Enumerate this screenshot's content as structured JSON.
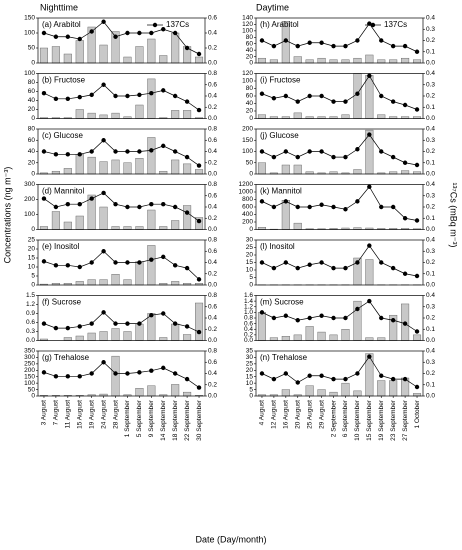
{
  "headers": [
    "Nighttime",
    "Daytime"
  ],
  "y_label": "Concentrations (ng m⁻³)",
  "y2_label": "¹³⁷Cs (mBq m⁻³)",
  "x_label": "Date (Day/month)",
  "chart_data": [
    {
      "type": "bar",
      "title": "(a) Arabitol",
      "legend": "upper right",
      "series": [
        {
          "color": "#c8c8c8",
          "values": [
            50,
            55,
            30,
            75,
            120,
            60,
            105,
            20,
            55,
            80,
            25,
            100,
            55,
            20
          ]
        },
        {
          "name": "137Cs",
          "color": "#000000",
          "axis": "y2",
          "values": [
            0.4,
            0.35,
            0.35,
            0.32,
            0.42,
            0.55,
            0.35,
            0.4,
            0.4,
            0.4,
            0.45,
            0.4,
            0.2,
            0.12
          ]
        }
      ],
      "ylim": [
        0,
        150
      ],
      "yticks": [
        0,
        50,
        100,
        150
      ],
      "y2lim": [
        0,
        0.6
      ],
      "y2ticks": [
        {
          "value": 0,
          "label": "0.0"
        },
        0.2,
        0.4,
        0.6
      ]
    },
    {
      "type": "bar",
      "title": "(b) Fructose",
      "series": [
        {
          "color": "#c8c8c8",
          "values": [
            2,
            2,
            2,
            20,
            12,
            8,
            12,
            4,
            30,
            88,
            2,
            18,
            18,
            2
          ]
        },
        {
          "color": "#000000",
          "axis": "y2",
          "values": [
            0.45,
            0.35,
            0.35,
            0.38,
            0.42,
            0.6,
            0.4,
            0.4,
            0.42,
            0.45,
            0.5,
            0.4,
            0.3,
            0.15
          ]
        }
      ],
      "ylim": [
        0,
        100
      ],
      "yticks": [
        0,
        20,
        40,
        60,
        80,
        100
      ],
      "y2lim": [
        0,
        0.8
      ],
      "y2ticks": [
        {
          "value": 0,
          "label": "0.0"
        },
        0.2,
        0.4,
        0.6,
        0.8
      ]
    },
    {
      "type": "bar",
      "title": "(c) Glucose",
      "series": [
        {
          "color": "#c8c8c8",
          "values": [
            2,
            5,
            10,
            35,
            30,
            22,
            25,
            20,
            28,
            65,
            5,
            25,
            18,
            8
          ]
        },
        {
          "color": "#000000",
          "axis": "y2",
          "values": [
            0.4,
            0.35,
            0.35,
            0.35,
            0.4,
            0.6,
            0.4,
            0.4,
            0.4,
            0.42,
            0.5,
            0.4,
            0.3,
            0.15
          ]
        }
      ],
      "ylim": [
        0,
        80
      ],
      "yticks": [
        0,
        20,
        40,
        60,
        80
      ],
      "y2lim": [
        0,
        0.8
      ],
      "y2ticks": [
        {
          "value": 0,
          "label": "0.0"
        },
        0.2,
        0.4,
        0.6,
        0.8
      ]
    },
    {
      "type": "bar",
      "title": "(d) Mannitol",
      "series": [
        {
          "color": "#c8c8c8",
          "values": [
            20,
            120,
            50,
            90,
            230,
            150,
            20,
            20,
            20,
            130,
            20,
            60,
            160,
            80
          ]
        },
        {
          "color": "#000000",
          "axis": "y2",
          "values": [
            0.55,
            0.4,
            0.45,
            0.45,
            0.55,
            0.65,
            0.45,
            0.4,
            0.4,
            0.45,
            0.45,
            0.4,
            0.3,
            0.15
          ]
        }
      ],
      "ylim": [
        0,
        300
      ],
      "yticks": [
        0,
        100,
        200,
        300
      ],
      "y2lim": [
        0,
        0.8
      ],
      "y2ticks": [
        {
          "value": 0,
          "label": "0.0"
        },
        0.2,
        0.4,
        0.6,
        0.8
      ]
    },
    {
      "type": "bar",
      "title": "(e) Inositol",
      "series": [
        {
          "color": "#c8c8c8",
          "values": [
            0.5,
            1,
            1,
            2,
            3,
            3,
            6,
            3,
            13,
            22,
            1,
            2,
            1,
            1
          ]
        },
        {
          "color": "#000000",
          "axis": "y2",
          "values": [
            0.42,
            0.35,
            0.35,
            0.32,
            0.4,
            0.6,
            0.4,
            0.4,
            0.4,
            0.45,
            0.5,
            0.35,
            0.3,
            0.1
          ]
        }
      ],
      "ylim": [
        0,
        25
      ],
      "yticks": [
        0,
        5,
        10,
        15,
        20,
        25
      ],
      "y2lim": [
        0,
        0.8
      ],
      "y2ticks": [
        {
          "value": 0,
          "label": "0.0"
        },
        0.2,
        0.4,
        0.6,
        0.8
      ]
    },
    {
      "type": "bar",
      "title": "(f) Sucrose",
      "series": [
        {
          "color": "#c8c8c8",
          "values": [
            0.05,
            0,
            0.1,
            0.15,
            0.25,
            0.3,
            0.4,
            0.3,
            0.55,
            0.9,
            0.1,
            0.55,
            0.2,
            1.25
          ]
        },
        {
          "color": "#000000",
          "axis": "y2",
          "values": [
            0.3,
            0.22,
            0.22,
            0.25,
            0.3,
            0.5,
            0.3,
            0.3,
            0.3,
            0.45,
            0.48,
            0.3,
            0.25,
            0.15
          ]
        }
      ],
      "ylim": [
        0,
        1.5
      ],
      "yticks": [
        {
          "value": 0,
          "label": "0.0"
        },
        0.3,
        0.6,
        0.9,
        1.2,
        1.5
      ],
      "y2lim": [
        0,
        0.8
      ],
      "y2ticks": [
        {
          "value": 0,
          "label": "0.0"
        },
        0.2,
        0.4,
        0.6,
        0.8
      ]
    },
    {
      "type": "bar",
      "title": "(g) Trehalose",
      "categories": [
        "3 August",
        "7 August",
        "11 August",
        "15 August",
        "19 August",
        "24 August",
        "28 August",
        "1 September",
        "5 September",
        "9 September",
        "14 September",
        "18 September",
        "22 September",
        "30 September"
      ],
      "series": [
        {
          "color": "#c8c8c8",
          "values": [
            5,
            5,
            5,
            5,
            10,
            15,
            310,
            10,
            60,
            80,
            10,
            90,
            30,
            5
          ]
        },
        {
          "color": "#000000",
          "axis": "y2",
          "values": [
            0.42,
            0.35,
            0.35,
            0.35,
            0.4,
            0.6,
            0.4,
            0.4,
            0.42,
            0.45,
            0.5,
            0.4,
            0.3,
            0.15
          ]
        }
      ],
      "ylim": [
        0,
        350
      ],
      "yticks": [
        0,
        50,
        100,
        150,
        200,
        250,
        300,
        350
      ],
      "y2lim": [
        0,
        0.8
      ],
      "y2ticks": [
        {
          "value": 0,
          "label": "0.0"
        },
        0.2,
        0.4,
        0.6,
        0.8
      ]
    },
    {
      "type": "bar",
      "title": "(h) Arabitol",
      "legend": "upper right",
      "series": [
        {
          "color": "#c8c8c8",
          "values": [
            15,
            10,
            130,
            20,
            10,
            15,
            10,
            10,
            15,
            25,
            10,
            10,
            15,
            10
          ]
        },
        {
          "name": "137Cs",
          "color": "#000000",
          "axis": "y2",
          "values": [
            0.2,
            0.15,
            0.2,
            0.15,
            0.18,
            0.18,
            0.15,
            0.15,
            0.2,
            0.35,
            0.2,
            0.15,
            0.15,
            0.1
          ]
        }
      ],
      "ylim": [
        0,
        140
      ],
      "yticks": [
        0,
        20,
        40,
        60,
        80,
        100,
        120,
        140
      ],
      "y2lim": [
        0,
        0.4
      ],
      "y2ticks": [
        {
          "value": 0,
          "label": "0.0"
        },
        0.1,
        0.2,
        0.3,
        0.4
      ]
    },
    {
      "type": "bar",
      "title": "(i) Fructose",
      "series": [
        {
          "color": "#c8c8c8",
          "values": [
            10,
            5,
            5,
            15,
            5,
            5,
            5,
            10,
            120,
            115,
            10,
            5,
            5,
            5
          ]
        },
        {
          "color": "#000000",
          "axis": "y2",
          "values": [
            0.22,
            0.18,
            0.2,
            0.15,
            0.2,
            0.2,
            0.15,
            0.15,
            0.22,
            0.38,
            0.2,
            0.15,
            0.12,
            0.08
          ]
        }
      ],
      "ylim": [
        0,
        120
      ],
      "yticks": [
        0,
        20,
        40,
        60,
        80,
        100,
        120
      ],
      "y2lim": [
        0,
        0.4
      ],
      "y2ticks": [
        {
          "value": 0,
          "label": "0.0"
        },
        0.1,
        0.2,
        0.3,
        0.4
      ]
    },
    {
      "type": "bar",
      "title": "(j) Glucose",
      "series": [
        {
          "color": "#c8c8c8",
          "values": [
            50,
            5,
            40,
            40,
            10,
            5,
            10,
            5,
            20,
            195,
            5,
            10,
            15,
            10
          ]
        },
        {
          "color": "#000000",
          "axis": "y2",
          "values": [
            0.2,
            0.15,
            0.2,
            0.15,
            0.2,
            0.2,
            0.15,
            0.15,
            0.22,
            0.35,
            0.2,
            0.15,
            0.1,
            0.08
          ]
        }
      ],
      "ylim": [
        0,
        200
      ],
      "yticks": [
        0,
        50,
        100,
        150,
        200
      ],
      "y2lim": [
        0,
        0.4
      ],
      "y2ticks": [
        {
          "value": 0,
          "label": "0.0"
        },
        0.1,
        0.2,
        0.3,
        0.4
      ]
    },
    {
      "type": "bar",
      "title": "(k) Mannitol",
      "series": [
        {
          "color": "#c8c8c8",
          "values": [
            60,
            10,
            780,
            170,
            20,
            20,
            30,
            40,
            50,
            40,
            30,
            30,
            30,
            20
          ]
        },
        {
          "color": "#000000",
          "axis": "y2",
          "values": [
            0.25,
            0.2,
            0.25,
            0.2,
            0.2,
            0.22,
            0.2,
            0.18,
            0.25,
            0.38,
            0.2,
            0.2,
            0.1,
            0.08
          ]
        }
      ],
      "ylim": [
        0,
        1200
      ],
      "yticks": [
        0,
        200,
        400,
        600,
        800,
        1000,
        1200
      ],
      "y2lim": [
        0,
        0.4
      ],
      "y2ticks": [
        {
          "value": 0,
          "label": "0.0"
        },
        0.1,
        0.2,
        0.3,
        0.4
      ]
    },
    {
      "type": "bar",
      "title": "(l) Inositol",
      "series": [
        {
          "color": "#c8c8c8",
          "values": [
            0.2,
            0.2,
            0.2,
            0.2,
            0.2,
            0.2,
            0.2,
            0.2,
            18,
            17,
            0.2,
            0.2,
            0.2,
            0.2
          ]
        },
        {
          "color": "#000000",
          "axis": "y2",
          "values": [
            0.2,
            0.15,
            0.2,
            0.15,
            0.18,
            0.2,
            0.15,
            0.15,
            0.2,
            0.35,
            0.2,
            0.15,
            0.1,
            0.08
          ]
        }
      ],
      "ylim": [
        0,
        30
      ],
      "yticks": [
        0,
        5,
        10,
        15,
        20,
        25,
        30
      ],
      "y2lim": [
        0,
        0.4
      ],
      "y2ticks": [
        {
          "value": 0,
          "label": "0.0"
        },
        0.1,
        0.2,
        0.3,
        0.4
      ]
    },
    {
      "type": "bar",
      "title": "(m) Sucrose",
      "series": [
        {
          "color": "#c8c8c8",
          "values": [
            1.0,
            0.1,
            0.15,
            0.2,
            0.5,
            0.3,
            0.2,
            0.4,
            1.4,
            0.1,
            0.1,
            0.9,
            1.3,
            0.2
          ]
        },
        {
          "color": "#000000",
          "axis": "y2",
          "values": [
            0.25,
            0.2,
            0.22,
            0.18,
            0.2,
            0.22,
            0.2,
            0.2,
            0.28,
            0.35,
            0.2,
            0.18,
            0.15,
            0.08
          ]
        }
      ],
      "ylim": [
        0,
        1.6
      ],
      "yticks": [
        {
          "value": 0,
          "label": "0.0"
        },
        0.2,
        0.4,
        0.6,
        0.8,
        {
          "value": 1,
          "label": "1.0"
        },
        1.2,
        1.4,
        1.6
      ],
      "y2lim": [
        0,
        0.4
      ],
      "y2ticks": [
        {
          "value": 0,
          "label": "0.0"
        },
        0.1,
        0.2,
        0.3,
        0.4
      ]
    },
    {
      "type": "bar",
      "title": "(n) Trehalose",
      "categories": [
        "4 August",
        "12 August",
        "16 August",
        "20 August",
        "25 August",
        "29 August",
        "2 September",
        "6 September",
        "10 September",
        "15 September",
        "19 September",
        "23 September",
        "27 September",
        "1 October"
      ],
      "series": [
        {
          "color": "#c8c8c8",
          "values": [
            1,
            1,
            5,
            1,
            8,
            5,
            3,
            10,
            4,
            33,
            12,
            12,
            14,
            2
          ]
        },
        {
          "color": "#000000",
          "axis": "y2",
          "values": [
            0.2,
            0.15,
            0.2,
            0.12,
            0.18,
            0.18,
            0.15,
            0.15,
            0.2,
            0.35,
            0.18,
            0.15,
            0.15,
            0.08
          ]
        }
      ],
      "ylim": [
        0,
        35
      ],
      "yticks": [
        0,
        5,
        10,
        15,
        20,
        25,
        30,
        35
      ],
      "y2lim": [
        0,
        0.4
      ],
      "y2ticks": [
        {
          "value": 0,
          "label": "0.0"
        },
        0.1,
        0.2,
        0.3,
        0.4
      ]
    }
  ]
}
